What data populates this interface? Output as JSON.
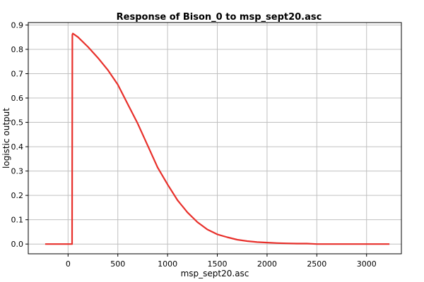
{
  "chart_data": {
    "type": "line",
    "title": "Response of Bison_0 to msp_sept20.asc",
    "xlabel": "msp_sept20.asc",
    "ylabel": "logistic output",
    "xlim": [
      -400,
      3350
    ],
    "ylim": [
      -0.04,
      0.91
    ],
    "xticks": [
      0,
      500,
      1000,
      1500,
      2000,
      2500,
      3000
    ],
    "yticks": [
      0.0,
      0.1,
      0.2,
      0.3,
      0.4,
      0.5,
      0.6,
      0.7,
      0.8,
      0.9
    ],
    "ytick_labels": [
      "0.0",
      "0.1",
      "0.2",
      "0.3",
      "0.4",
      "0.5",
      "0.6",
      "0.7",
      "0.8",
      "0.9"
    ],
    "grid": true,
    "colors": {
      "line": "#e8302b",
      "grid": "#c0c0c0",
      "frame": "#000000"
    },
    "series": [
      {
        "x": [
          -230,
          40,
          43,
          48,
          100,
          200,
          300,
          400,
          500,
          600,
          700,
          800,
          900,
          1000,
          1100,
          1200,
          1300,
          1400,
          1500,
          1600,
          1700,
          1800,
          1900,
          2000,
          2100,
          2200,
          2300,
          2400,
          2450,
          2500,
          2700,
          3000,
          3230
        ],
        "y": [
          0.0,
          0.0,
          0.86,
          0.865,
          0.85,
          0.81,
          0.765,
          0.715,
          0.655,
          0.575,
          0.495,
          0.405,
          0.315,
          0.245,
          0.18,
          0.13,
          0.09,
          0.06,
          0.04,
          0.028,
          0.018,
          0.012,
          0.008,
          0.006,
          0.004,
          0.003,
          0.002,
          0.002,
          0.001,
          0.0,
          0.0,
          0.0,
          0.0
        ]
      }
    ]
  }
}
